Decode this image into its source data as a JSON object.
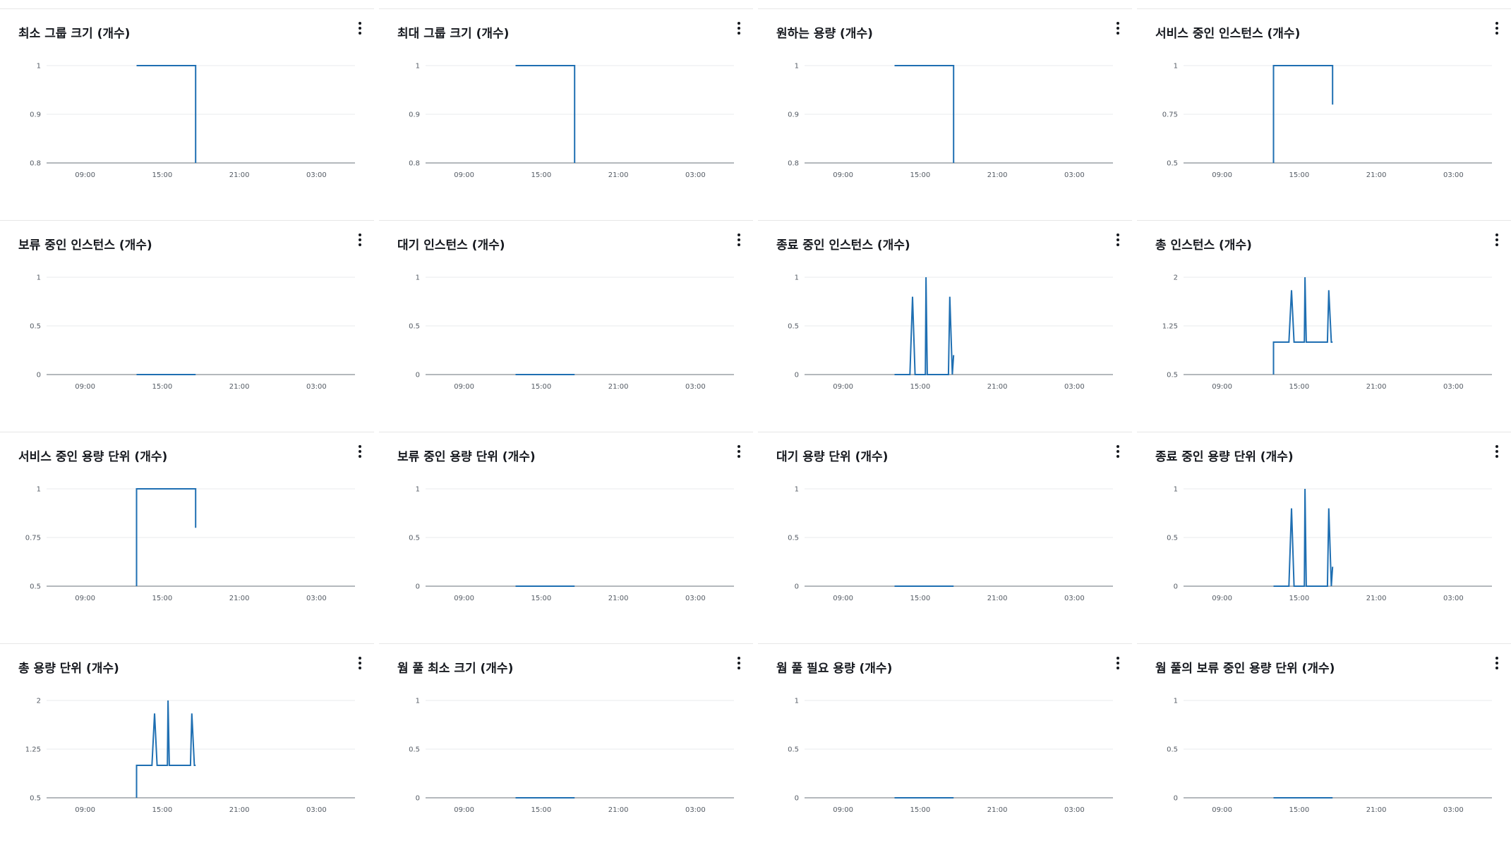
{
  "colors": {
    "series": "#1f6fb2",
    "grid": "#e9ebed",
    "axis": "#687078",
    "title": "#16191f"
  },
  "x_tick_labels": [
    "09:00",
    "15:00",
    "21:00",
    "03:00"
  ],
  "panels": [
    {
      "title": "최소 그룹 크기 (개수)",
      "menu_icon": "more-vertical-icon"
    },
    {
      "title": "최대 그룹 크기 (개수)",
      "menu_icon": "more-vertical-icon"
    },
    {
      "title": "원하는 용량 (개수)",
      "menu_icon": "more-vertical-icon"
    },
    {
      "title": "서비스 중인 인스턴스 (개수)",
      "menu_icon": "more-vertical-icon"
    },
    {
      "title": "보류 중인 인스턴스 (개수)",
      "menu_icon": "more-vertical-icon"
    },
    {
      "title": "대기 인스턴스 (개수)",
      "menu_icon": "more-vertical-icon"
    },
    {
      "title": "종료 중인 인스턴스 (개수)",
      "menu_icon": "more-vertical-icon"
    },
    {
      "title": "총 인스턴스 (개수)",
      "menu_icon": "more-vertical-icon"
    },
    {
      "title": "서비스 중인 용량 단위 (개수)",
      "menu_icon": "more-vertical-icon"
    },
    {
      "title": "보류 중인 용량 단위 (개수)",
      "menu_icon": "more-vertical-icon"
    },
    {
      "title": "대기 용량 단위 (개수)",
      "menu_icon": "more-vertical-icon"
    },
    {
      "title": "종료 중인 용량 단위 (개수)",
      "menu_icon": "more-vertical-icon"
    },
    {
      "title": "총 용량 단위 (개수)",
      "menu_icon": "more-vertical-icon"
    },
    {
      "title": "웜 풀 최소 크기 (개수)",
      "menu_icon": "more-vertical-icon"
    },
    {
      "title": "웜 풀 필요 용량 (개수)",
      "menu_icon": "more-vertical-icon"
    },
    {
      "title": "웜 풀의 보류 중인 용량 단위 (개수)",
      "menu_icon": "more-vertical-icon"
    }
  ],
  "chart_data": [
    {
      "type": "line",
      "title": "최소 그룹 크기 (개수)",
      "y_ticks": [
        "1",
        "0.9",
        "0.8"
      ],
      "ylim": [
        0.8,
        1
      ],
      "x_ticks": [
        "09:00",
        "15:00",
        "21:00",
        "03:00"
      ],
      "series": [
        {
          "points": [
            [
              13.0,
              1
            ],
            [
              17.6,
              1
            ],
            [
              17.6,
              0.8
            ]
          ]
        }
      ]
    },
    {
      "type": "line",
      "title": "최대 그룹 크기 (개수)",
      "y_ticks": [
        "1",
        "0.9",
        "0.8"
      ],
      "ylim": [
        0.8,
        1
      ],
      "x_ticks": [
        "09:00",
        "15:00",
        "21:00",
        "03:00"
      ],
      "series": [
        {
          "points": [
            [
              13.0,
              1
            ],
            [
              17.6,
              1
            ],
            [
              17.6,
              0.8
            ]
          ]
        }
      ]
    },
    {
      "type": "line",
      "title": "원하는 용량 (개수)",
      "y_ticks": [
        "1",
        "0.9",
        "0.8"
      ],
      "ylim": [
        0.8,
        1
      ],
      "x_ticks": [
        "09:00",
        "15:00",
        "21:00",
        "03:00"
      ],
      "series": [
        {
          "points": [
            [
              13.0,
              1
            ],
            [
              17.6,
              1
            ],
            [
              17.6,
              0.8
            ]
          ]
        }
      ]
    },
    {
      "type": "line",
      "title": "서비스 중인 인스턴스 (개수)",
      "y_ticks": [
        "1",
        "0.75",
        "0.5"
      ],
      "ylim": [
        0.5,
        1
      ],
      "x_ticks": [
        "09:00",
        "15:00",
        "21:00",
        "03:00"
      ],
      "series": [
        {
          "points": [
            [
              13.0,
              0.5
            ],
            [
              13.0,
              1
            ],
            [
              17.6,
              1
            ],
            [
              17.6,
              0.8
            ]
          ]
        }
      ]
    },
    {
      "type": "line",
      "title": "보류 중인 인스턴스 (개수)",
      "y_ticks": [
        "1",
        "0.5",
        "0"
      ],
      "ylim": [
        0,
        1
      ],
      "x_ticks": [
        "09:00",
        "15:00",
        "21:00",
        "03:00"
      ],
      "series": [
        {
          "points": [
            [
              13.0,
              0
            ],
            [
              17.6,
              0
            ]
          ]
        }
      ]
    },
    {
      "type": "line",
      "title": "대기 인스턴스 (개수)",
      "y_ticks": [
        "1",
        "0.5",
        "0"
      ],
      "ylim": [
        0,
        1
      ],
      "x_ticks": [
        "09:00",
        "15:00",
        "21:00",
        "03:00"
      ],
      "series": [
        {
          "points": [
            [
              13.0,
              0
            ],
            [
              17.6,
              0
            ]
          ]
        }
      ]
    },
    {
      "type": "line",
      "title": "종료 중인 인스턴스 (개수)",
      "y_ticks": [
        "1",
        "0.5",
        "0"
      ],
      "ylim": [
        0,
        1
      ],
      "x_ticks": [
        "09:00",
        "15:00",
        "21:00",
        "03:00"
      ],
      "series": [
        {
          "points": [
            [
              13.0,
              0
            ],
            [
              14.2,
              0
            ],
            [
              14.4,
              0.8
            ],
            [
              14.6,
              0
            ],
            [
              15.4,
              0
            ],
            [
              15.45,
              1
            ],
            [
              15.55,
              0
            ],
            [
              17.2,
              0
            ],
            [
              17.3,
              0.8
            ],
            [
              17.5,
              0
            ],
            [
              17.6,
              0.2
            ]
          ]
        }
      ]
    },
    {
      "type": "line",
      "title": "총 인스턴스 (개수)",
      "y_ticks": [
        "2",
        "1.25",
        "0.5"
      ],
      "ylim": [
        0.5,
        2
      ],
      "x_ticks": [
        "09:00",
        "15:00",
        "21:00",
        "03:00"
      ],
      "series": [
        {
          "points": [
            [
              13.0,
              0.5
            ],
            [
              13.0,
              1
            ],
            [
              14.2,
              1
            ],
            [
              14.4,
              1.8
            ],
            [
              14.6,
              1
            ],
            [
              15.4,
              1
            ],
            [
              15.45,
              2
            ],
            [
              15.55,
              1
            ],
            [
              17.2,
              1
            ],
            [
              17.3,
              1.8
            ],
            [
              17.5,
              1
            ],
            [
              17.6,
              1
            ]
          ]
        }
      ]
    },
    {
      "type": "line",
      "title": "서비스 중인 용량 단위 (개수)",
      "y_ticks": [
        "1",
        "0.75",
        "0.5"
      ],
      "ylim": [
        0.5,
        1
      ],
      "x_ticks": [
        "09:00",
        "15:00",
        "21:00",
        "03:00"
      ],
      "series": [
        {
          "points": [
            [
              13.0,
              0.5
            ],
            [
              13.0,
              1
            ],
            [
              17.6,
              1
            ],
            [
              17.6,
              0.8
            ]
          ]
        }
      ]
    },
    {
      "type": "line",
      "title": "보류 중인 용량 단위 (개수)",
      "y_ticks": [
        "1",
        "0.5",
        "0"
      ],
      "ylim": [
        0,
        1
      ],
      "x_ticks": [
        "09:00",
        "15:00",
        "21:00",
        "03:00"
      ],
      "series": [
        {
          "points": [
            [
              13.0,
              0
            ],
            [
              17.6,
              0
            ]
          ]
        }
      ]
    },
    {
      "type": "line",
      "title": "대기 용량 단위 (개수)",
      "y_ticks": [
        "1",
        "0.5",
        "0"
      ],
      "ylim": [
        0,
        1
      ],
      "x_ticks": [
        "09:00",
        "15:00",
        "21:00",
        "03:00"
      ],
      "series": [
        {
          "points": [
            [
              13.0,
              0
            ],
            [
              17.6,
              0
            ]
          ]
        }
      ]
    },
    {
      "type": "line",
      "title": "종료 중인 용량 단위 (개수)",
      "y_ticks": [
        "1",
        "0.5",
        "0"
      ],
      "ylim": [
        0,
        1
      ],
      "x_ticks": [
        "09:00",
        "15:00",
        "21:00",
        "03:00"
      ],
      "series": [
        {
          "points": [
            [
              13.0,
              0
            ],
            [
              14.2,
              0
            ],
            [
              14.4,
              0.8
            ],
            [
              14.6,
              0
            ],
            [
              15.4,
              0
            ],
            [
              15.45,
              1
            ],
            [
              15.55,
              0
            ],
            [
              17.2,
              0
            ],
            [
              17.3,
              0.8
            ],
            [
              17.5,
              0
            ],
            [
              17.6,
              0.2
            ]
          ]
        }
      ]
    },
    {
      "type": "line",
      "title": "총 용량 단위 (개수)",
      "y_ticks": [
        "2",
        "1.25",
        "0.5"
      ],
      "ylim": [
        0.5,
        2
      ],
      "x_ticks": [
        "09:00",
        "15:00",
        "21:00",
        "03:00"
      ],
      "series": [
        {
          "points": [
            [
              13.0,
              0.5
            ],
            [
              13.0,
              1
            ],
            [
              14.2,
              1
            ],
            [
              14.4,
              1.8
            ],
            [
              14.6,
              1
            ],
            [
              15.4,
              1
            ],
            [
              15.45,
              2
            ],
            [
              15.55,
              1
            ],
            [
              17.2,
              1
            ],
            [
              17.3,
              1.8
            ],
            [
              17.5,
              1
            ],
            [
              17.6,
              1
            ]
          ]
        }
      ]
    },
    {
      "type": "line",
      "title": "웜 풀 최소 크기 (개수)",
      "y_ticks": [
        "1",
        "0.5",
        "0"
      ],
      "ylim": [
        0,
        1
      ],
      "x_ticks": [
        "09:00",
        "15:00",
        "21:00",
        "03:00"
      ],
      "series": [
        {
          "points": [
            [
              13.0,
              0
            ],
            [
              17.6,
              0
            ]
          ]
        }
      ]
    },
    {
      "type": "line",
      "title": "웜 풀 필요 용량 (개수)",
      "y_ticks": [
        "1",
        "0.5",
        "0"
      ],
      "ylim": [
        0,
        1
      ],
      "x_ticks": [
        "09:00",
        "15:00",
        "21:00",
        "03:00"
      ],
      "series": [
        {
          "points": [
            [
              13.0,
              0
            ],
            [
              17.6,
              0
            ]
          ]
        }
      ]
    },
    {
      "type": "line",
      "title": "웜 풀의 보류 중인 용량 단위 (개수)",
      "y_ticks": [
        "1",
        "0.5",
        "0"
      ],
      "ylim": [
        0,
        1
      ],
      "x_ticks": [
        "09:00",
        "15:00",
        "21:00",
        "03:00"
      ],
      "series": [
        {
          "points": [
            [
              13.0,
              0
            ],
            [
              17.6,
              0
            ]
          ]
        }
      ]
    }
  ]
}
